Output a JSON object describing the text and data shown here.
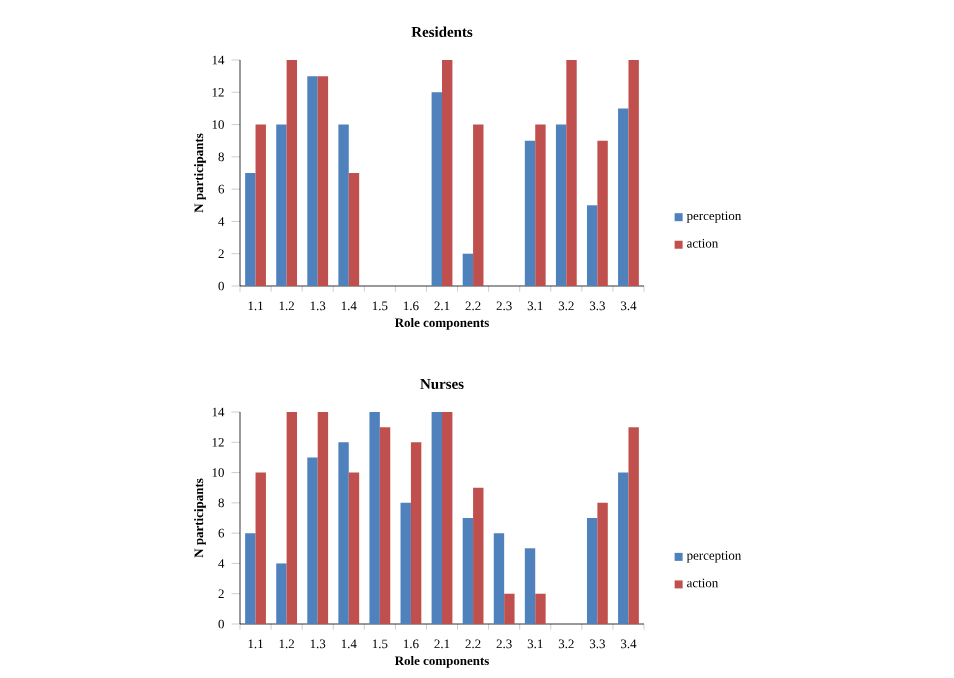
{
  "chart_data": [
    {
      "type": "bar",
      "title": "Residents",
      "xlabel": "Role components",
      "ylabel": "N participants",
      "categories": [
        "1.1",
        "1.2",
        "1.3",
        "1.4",
        "1.5",
        "1.6",
        "2.1",
        "2.2",
        "2.3",
        "3.1",
        "3.2",
        "3.3",
        "3.4"
      ],
      "series": [
        {
          "name": "perception",
          "color": "#4f81bd",
          "values": [
            7,
            10,
            13,
            10,
            0,
            0,
            12,
            2,
            0,
            9,
            10,
            5,
            11
          ]
        },
        {
          "name": "action",
          "color": "#c0504d",
          "values": [
            10,
            14,
            13,
            7,
            0,
            0,
            14,
            10,
            0,
            10,
            14,
            9,
            14
          ]
        }
      ],
      "ylim": [
        0,
        14
      ],
      "yticks": [
        0,
        2,
        4,
        6,
        8,
        10,
        12,
        14
      ],
      "legend": "right"
    },
    {
      "type": "bar",
      "title": "Nurses",
      "xlabel": "Role components",
      "ylabel": "N participants",
      "categories": [
        "1.1",
        "1.2",
        "1.3",
        "1.4",
        "1.5",
        "1.6",
        "2.1",
        "2.2",
        "2.3",
        "3.1",
        "3.2",
        "3.3",
        "3.4"
      ],
      "series": [
        {
          "name": "perception",
          "color": "#4f81bd",
          "values": [
            6,
            4,
            11,
            12,
            14,
            8,
            14,
            7,
            6,
            5,
            0,
            7,
            10
          ]
        },
        {
          "name": "action",
          "color": "#c0504d",
          "values": [
            10,
            14,
            14,
            10,
            13,
            12,
            14,
            9,
            2,
            2,
            0,
            8,
            13
          ]
        }
      ],
      "ylim": [
        0,
        14
      ],
      "yticks": [
        0,
        2,
        4,
        6,
        8,
        10,
        12,
        14
      ],
      "legend": "right"
    }
  ]
}
